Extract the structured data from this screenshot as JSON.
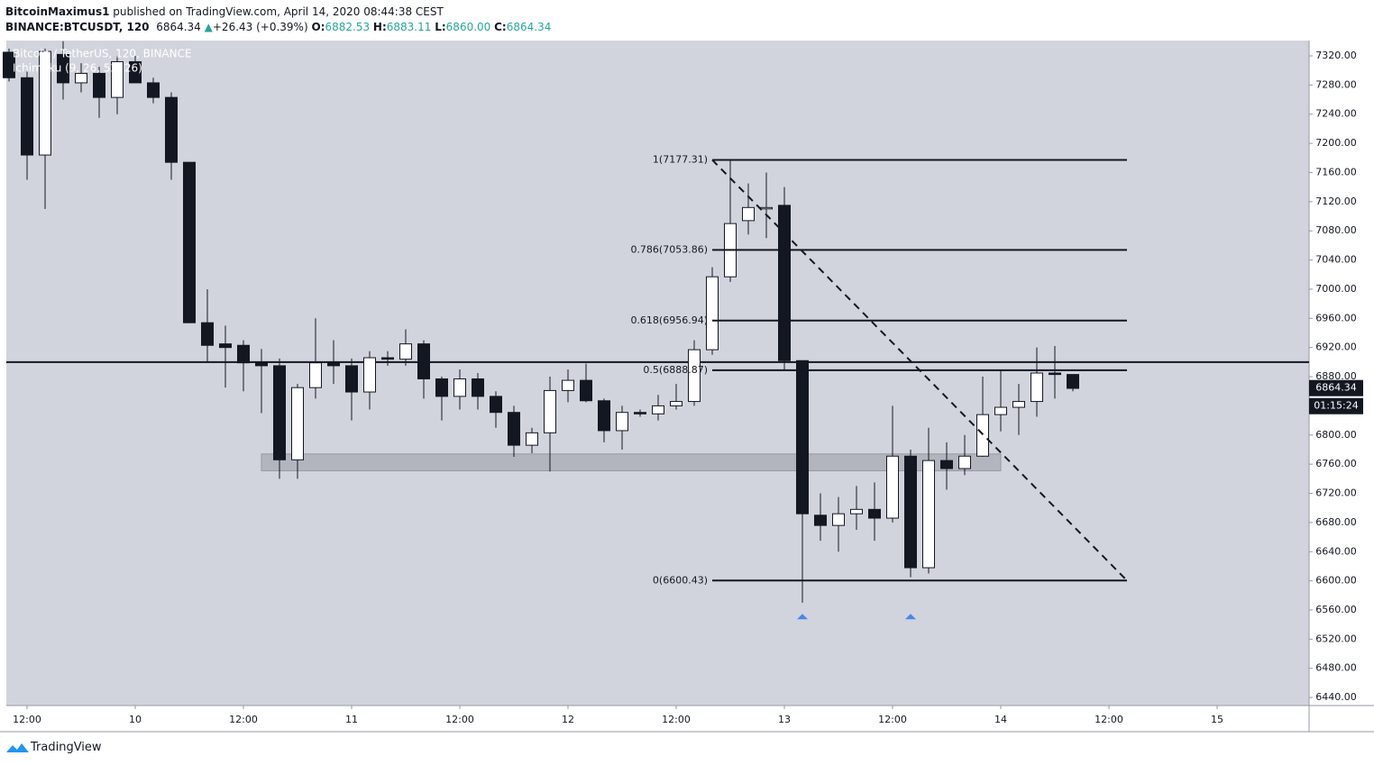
{
  "header": {
    "author": "BitcoinMaximus1",
    "published": "published on TradingView.com, April 14, 2020 08:44:38 CEST",
    "symbol": "BINANCE:BTCUSDT, 120",
    "last": "6864.34",
    "change": "+26.43 (+0.39%)",
    "o_label": "O:",
    "o": "6882.53",
    "h_label": "H:",
    "h": "6883.11",
    "l_label": "L:",
    "l": "6860.00",
    "c_label": "C:",
    "c": "6864.34"
  },
  "footer": "TradingView",
  "chart_data": {
    "type": "candlestick",
    "legend": [
      "Bitcoin / TetherUS, 120, BINANCE",
      "Ichimoku (9, 26, 52, 26)"
    ],
    "x": [
      10,
      12,
      14,
      16,
      18,
      20,
      22,
      24,
      26,
      28,
      30,
      32,
      34,
      36,
      38,
      40,
      42,
      44,
      46,
      48,
      50,
      52,
      54,
      56,
      58,
      60,
      62,
      64,
      66,
      68,
      70,
      72,
      74,
      76,
      78,
      80,
      82,
      84,
      86,
      88,
      90,
      92,
      94,
      96,
      98,
      100,
      102,
      104,
      106,
      108,
      110,
      112,
      114,
      116,
      118,
      120,
      122,
      124,
      126,
      128
    ],
    "open": [
      7325,
      7290,
      7184,
      7322,
      7283,
      7296,
      7263,
      7312,
      7283,
      7263,
      7174,
      6954,
      6925,
      6923,
      6899,
      6895,
      6766,
      6865,
      6899,
      6895,
      6859,
      6906,
      6904,
      6925,
      6877,
      6853,
      6877,
      6853,
      6831,
      6786,
      6803,
      6861,
      6875,
      6847,
      6806,
      6831,
      6829,
      6840,
      6846,
      6917,
      7017,
      7094,
      7112,
      7115,
      6902,
      6690,
      6676,
      6692,
      6698,
      6686,
      6771,
      6618,
      6765,
      6754,
      6771,
      6828,
      6838,
      6846,
      6885,
      6883
    ],
    "high": [
      7330,
      7300,
      7330,
      7340,
      7310,
      7305,
      7320,
      7320,
      7290,
      7270,
      7174,
      7000,
      6950,
      6930,
      6918,
      6905,
      6870,
      6960,
      6930,
      6905,
      6915,
      6915,
      6945,
      6930,
      6880,
      6890,
      6885,
      6860,
      6840,
      6810,
      6880,
      6890,
      6898,
      6850,
      6840,
      6835,
      6855,
      6870,
      6930,
      7030,
      7178,
      7145,
      7160,
      7140,
      6902,
      6720,
      6715,
      6730,
      6735,
      6840,
      6780,
      6810,
      6790,
      6800,
      6880,
      6890,
      6870,
      6920,
      6922,
      6883
    ],
    "low": [
      7285,
      7150,
      7110,
      7260,
      7270,
      7235,
      7240,
      7283,
      7255,
      7150,
      6954,
      6900,
      6865,
      6860,
      6830,
      6740,
      6740,
      6850,
      6870,
      6820,
      6835,
      6895,
      6895,
      6850,
      6820,
      6835,
      6835,
      6810,
      6770,
      6775,
      6750,
      6845,
      6845,
      6790,
      6780,
      6825,
      6820,
      6835,
      6840,
      6910,
      7010,
      7075,
      7070,
      6890,
      6570,
      6655,
      6640,
      6670,
      6655,
      6680,
      6605,
      6610,
      6725,
      6745,
      6770,
      6805,
      6800,
      6825,
      6850,
      6860
    ],
    "close": [
      7290,
      7184,
      7326,
      7283,
      7296,
      7263,
      7312,
      7283,
      7263,
      7174,
      6954,
      6923,
      6920,
      6899,
      6895,
      6766,
      6865,
      6899,
      6895,
      6859,
      6906,
      6904,
      6925,
      6877,
      6853,
      6877,
      6853,
      6831,
      6786,
      6803,
      6861,
      6875,
      6847,
      6806,
      6831,
      6829,
      6840,
      6846,
      6917,
      7017,
      7090,
      7112,
      7112,
      6902,
      6692,
      6676,
      6692,
      6698,
      6686,
      6771,
      6618,
      6765,
      6754,
      6771,
      6828,
      6838,
      6846,
      6885,
      6883,
      6864
    ],
    "up_color": "#ffffff",
    "down_color": "#131722",
    "xlim": [
      9.7,
      154.2
    ],
    "ylim": [
      6429,
      7341
    ],
    "xticks": [
      {
        "value": 12,
        "label": "12:00"
      },
      {
        "value": 24,
        "label": "10"
      },
      {
        "value": 36,
        "label": "12:00"
      },
      {
        "value": 48,
        "label": "11"
      },
      {
        "value": 60,
        "label": "12:00"
      },
      {
        "value": 72,
        "label": "12"
      },
      {
        "value": 84,
        "label": "12:00"
      },
      {
        "value": 96,
        "label": "13"
      },
      {
        "value": 108,
        "label": "12:00"
      },
      {
        "value": 120,
        "label": "14"
      },
      {
        "value": 132,
        "label": "12:00"
      },
      {
        "value": 144,
        "label": "15"
      }
    ],
    "yticks": [
      {
        "value": 6440,
        "label": "6440.00"
      },
      {
        "value": 6480,
        "label": "6480.00"
      },
      {
        "value": 6520,
        "label": "6520.00"
      },
      {
        "value": 6560,
        "label": "6560.00"
      },
      {
        "value": 6600,
        "label": "6600.00"
      },
      {
        "value": 6640,
        "label": "6640.00"
      },
      {
        "value": 6680,
        "label": "6680.00"
      },
      {
        "value": 6720,
        "label": "6720.00"
      },
      {
        "value": 6760,
        "label": "6760.00"
      },
      {
        "value": 6800,
        "label": "6800.00"
      },
      {
        "value": 6840,
        "label": "6840.00"
      },
      {
        "value": 6880,
        "label": "6880.00"
      },
      {
        "value": 6920,
        "label": "6920.00"
      },
      {
        "value": 6960,
        "label": "6960.00"
      },
      {
        "value": 7000,
        "label": "7000.00"
      },
      {
        "value": 7040,
        "label": "7040.00"
      },
      {
        "value": 7080,
        "label": "7080.00"
      },
      {
        "value": 7120,
        "label": "7120.00"
      },
      {
        "value": 7160,
        "label": "7160.00"
      },
      {
        "value": 7200,
        "label": "7200.00"
      },
      {
        "value": 7240,
        "label": "7240.00"
      },
      {
        "value": 7280,
        "label": "7280.00"
      },
      {
        "value": 7320,
        "label": "7320.00"
      }
    ],
    "fib_levels": [
      {
        "value": 7177.31,
        "label": "1(7177.31)"
      },
      {
        "value": 7053.86,
        "label": "0.786(7053.86)"
      },
      {
        "value": 6956.94,
        "label": "0.618(6956.94)"
      },
      {
        "value": 6888.87,
        "label": "0.5(6888.87)"
      },
      {
        "value": 6600.43,
        "label": "0(6600.43)"
      }
    ],
    "fib_x": [
      88,
      134
    ],
    "horizontal_line": 6900,
    "support_zone": {
      "x": [
        38,
        120
      ],
      "y": [
        6751,
        6774
      ]
    },
    "trend_line": {
      "x": [
        88,
        134
      ],
      "y": [
        7177.31,
        6600.43
      ]
    },
    "signals": {
      "x": [
        98,
        110
      ],
      "y": [
        6551,
        6551
      ],
      "color": "#4a86e8"
    },
    "price_label": {
      "value": 6864.34,
      "countdown": "01:15:24"
    }
  }
}
